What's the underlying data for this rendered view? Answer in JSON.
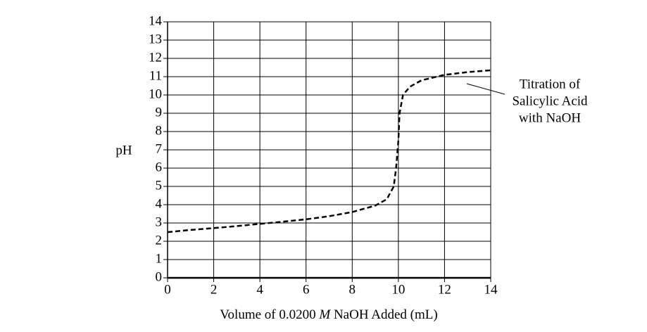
{
  "chart_data": {
    "type": "line",
    "xlabel": [
      "Volume of 0.0200 ",
      "M",
      " NaOH Added (mL)"
    ],
    "ylabel": "pH",
    "annotation": [
      "Titration of",
      "Salicylic Acid",
      "with NaOH"
    ],
    "x": [
      0,
      1,
      2,
      3,
      4,
      5,
      6,
      7,
      8,
      9,
      9.5,
      9.8,
      9.9,
      10,
      10.05,
      10.2,
      10.5,
      11,
      12,
      13,
      14
    ],
    "values": [
      2.5,
      2.62,
      2.72,
      2.83,
      2.95,
      3.07,
      3.2,
      3.37,
      3.6,
      3.95,
      4.3,
      5.0,
      6.0,
      7.5,
      9.0,
      10.0,
      10.45,
      10.8,
      11.1,
      11.25,
      11.35
    ],
    "color": "#000000",
    "line_style": "dashed",
    "xlim": [
      0,
      14
    ],
    "xticks": [
      0,
      2,
      4,
      6,
      8,
      10,
      12,
      14
    ],
    "ylim": [
      0,
      14
    ],
    "yticks": [
      0,
      1,
      2,
      3,
      4,
      5,
      6,
      7,
      8,
      9,
      10,
      11,
      12,
      13,
      14
    ],
    "grid": true
  }
}
